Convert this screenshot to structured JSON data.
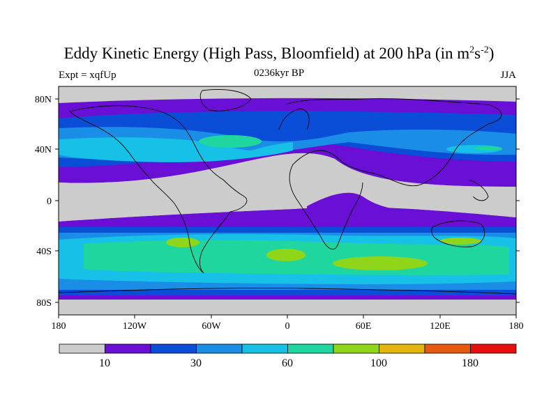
{
  "title": {
    "main": "Eddy Kinetic Energy (High Pass, Bloomfield) at 200 hPa (in m",
    "sup1": "2",
    "mid": "s",
    "sup2": "-2",
    "close": ")"
  },
  "subtitle": {
    "left": "Expt = xqfUp",
    "center": "0236kyr BP",
    "right": "JJA"
  },
  "axes": {
    "lat_labels": [
      "80N",
      "40N",
      "0",
      "40S",
      "80S"
    ],
    "lon_labels": [
      "180",
      "120W",
      "60W",
      "0",
      "60E",
      "120E",
      "180"
    ]
  },
  "colorbar": {
    "colors": [
      "#cccccc",
      "#6a0fd6",
      "#0a4ed8",
      "#1a8ee6",
      "#16c0e6",
      "#1fd79e",
      "#8fd61a",
      "#e6b40f",
      "#e65a0f",
      "#e60f0f"
    ],
    "labels": [
      "10",
      "30",
      "60",
      "100",
      "180"
    ]
  }
}
